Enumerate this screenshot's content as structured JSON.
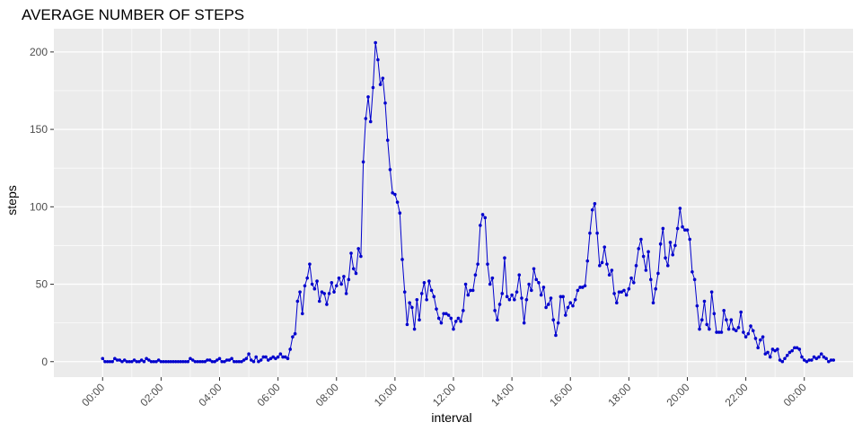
{
  "chart_data": {
    "type": "line",
    "title": "AVERAGE NUMBER OF STEPS",
    "xlabel": "interval",
    "ylabel": "steps",
    "xlim": [
      "00:00",
      "24:00"
    ],
    "ylim": [
      -10,
      215
    ],
    "x_ticks": [
      "00:00",
      "02:00",
      "04:00",
      "06:00",
      "08:00",
      "10:00",
      "12:00",
      "14:00",
      "16:00",
      "18:00",
      "20:00",
      "22:00",
      "00:00"
    ],
    "y_ticks": [
      0,
      50,
      100,
      150,
      200
    ],
    "grid": true,
    "legend": "none",
    "series": [
      {
        "x_interval_minutes": 5,
        "x_start": "00:00",
        "values": [
          2,
          0,
          0,
          0,
          0,
          2,
          1,
          1,
          0,
          1,
          0,
          0,
          0,
          1,
          0,
          0,
          1,
          0,
          2,
          1,
          0,
          0,
          0,
          1,
          0,
          0,
          0,
          0,
          0,
          0,
          0,
          0,
          0,
          0,
          0,
          0,
          2,
          1,
          0,
          0,
          0,
          0,
          0,
          1,
          1,
          0,
          0,
          1,
          2,
          0,
          0,
          1,
          1,
          2,
          0,
          0,
          0,
          0,
          1,
          2,
          5,
          1,
          0,
          3,
          0,
          1,
          3,
          3,
          1,
          2,
          3,
          2,
          3,
          5,
          3,
          3,
          2,
          8,
          16,
          18,
          39,
          45,
          31,
          49,
          54,
          63,
          50,
          47,
          52,
          39,
          45,
          44,
          37,
          44,
          51,
          45,
          49,
          54,
          50,
          55,
          44,
          53,
          70,
          60,
          57,
          73,
          68,
          129,
          157,
          171,
          155,
          177,
          206,
          195,
          179,
          183,
          167,
          143,
          124,
          109,
          108,
          103,
          96,
          66,
          45,
          24,
          38,
          35,
          21,
          40,
          27,
          44,
          51,
          40,
          52,
          46,
          42,
          34,
          28,
          25,
          31,
          31,
          30,
          28,
          21,
          26,
          28,
          26,
          33,
          50,
          43,
          46,
          46,
          56,
          63,
          88,
          95,
          93,
          63,
          50,
          54,
          33,
          27,
          37,
          44,
          67,
          42,
          40,
          43,
          40,
          45,
          56,
          41,
          25,
          40,
          50,
          46,
          60,
          53,
          51,
          43,
          48,
          35,
          37,
          41,
          27,
          17,
          25,
          42,
          42,
          30,
          35,
          38,
          36,
          40,
          46,
          48,
          48,
          49,
          65,
          83,
          98,
          102,
          83,
          62,
          64,
          74,
          63,
          56,
          59,
          44,
          38,
          45,
          45,
          46,
          43,
          47,
          54,
          51,
          62,
          73,
          79,
          68,
          59,
          71,
          53,
          38,
          47,
          57,
          76,
          86,
          67,
          62,
          77,
          69,
          75,
          86,
          99,
          87,
          85,
          85,
          79,
          58,
          53,
          36,
          21,
          27,
          39,
          24,
          21,
          45,
          31,
          19,
          19,
          19,
          33,
          27,
          21,
          27,
          21,
          20,
          22,
          32,
          19,
          16,
          18,
          23,
          20,
          15,
          9,
          14,
          16,
          5,
          6,
          3,
          8,
          7,
          8,
          1,
          0,
          2,
          4,
          6,
          7,
          9,
          9,
          8,
          3,
          1,
          0,
          1,
          1,
          3,
          2,
          3,
          5,
          3,
          2,
          0,
          1,
          1
        ]
      }
    ],
    "colors": {
      "line": "#0000cd",
      "panel_bg": "#ebebeb",
      "grid_major": "#ffffff",
      "tick_text": "#4d4d4d"
    }
  }
}
